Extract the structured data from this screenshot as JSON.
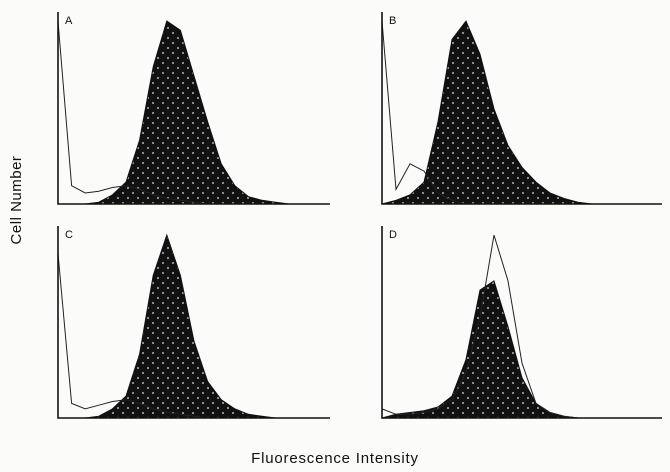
{
  "xlabel": "Fluorescence Intensity",
  "ylabel": "Cell Number",
  "chart_data": [
    {
      "type": "area",
      "panel": "A",
      "x": [
        0,
        0.05,
        0.1,
        0.15,
        0.2,
        0.25,
        0.3,
        0.35,
        0.4,
        0.45,
        0.5,
        0.55,
        0.6,
        0.65,
        0.7,
        0.75,
        0.8,
        0.85,
        0.9,
        0.95,
        1
      ],
      "series": [
        {
          "style": "filled",
          "values": [
            0,
            0,
            0,
            0.01,
            0.05,
            0.12,
            0.35,
            0.75,
            1.0,
            0.95,
            0.7,
            0.45,
            0.22,
            0.1,
            0.04,
            0.02,
            0.01,
            0,
            0,
            0,
            0
          ]
        },
        {
          "style": "outline",
          "values": [
            1.0,
            0.1,
            0.06,
            0.07,
            0.09,
            0.1,
            0.08,
            0.05,
            0.03,
            0.02,
            0.01,
            0,
            0,
            0,
            0,
            0,
            0,
            0,
            0,
            0,
            0
          ]
        }
      ],
      "xlim": [
        0,
        1
      ],
      "ylim": [
        0,
        1.05
      ],
      "grid": false
    },
    {
      "type": "area",
      "panel": "B",
      "x": [
        0,
        0.05,
        0.1,
        0.15,
        0.2,
        0.25,
        0.3,
        0.35,
        0.4,
        0.45,
        0.5,
        0.55,
        0.6,
        0.65,
        0.7,
        0.75,
        0.8,
        0.85,
        0.9,
        0.95,
        1
      ],
      "series": [
        {
          "style": "filled",
          "values": [
            0,
            0.02,
            0.05,
            0.12,
            0.45,
            0.9,
            1.0,
            0.82,
            0.52,
            0.32,
            0.2,
            0.12,
            0.06,
            0.03,
            0.01,
            0,
            0,
            0,
            0,
            0,
            0
          ]
        },
        {
          "style": "outline",
          "values": [
            1.0,
            0.08,
            0.22,
            0.18,
            0.06,
            0.02,
            0,
            0,
            0,
            0,
            0,
            0,
            0,
            0,
            0,
            0,
            0,
            0,
            0,
            0,
            0
          ]
        }
      ],
      "xlim": [
        0,
        1
      ],
      "ylim": [
        0,
        1.05
      ],
      "grid": false
    },
    {
      "type": "area",
      "panel": "C",
      "x": [
        0,
        0.05,
        0.1,
        0.15,
        0.2,
        0.25,
        0.3,
        0.35,
        0.4,
        0.45,
        0.5,
        0.55,
        0.6,
        0.65,
        0.7,
        0.75,
        0.8,
        0.85,
        0.9,
        0.95,
        1
      ],
      "series": [
        {
          "style": "filled",
          "values": [
            0,
            0,
            0,
            0.01,
            0.05,
            0.12,
            0.35,
            0.78,
            1.0,
            0.78,
            0.42,
            0.2,
            0.1,
            0.05,
            0.02,
            0.01,
            0,
            0,
            0,
            0,
            0
          ]
        },
        {
          "style": "outline",
          "values": [
            0.9,
            0.08,
            0.05,
            0.07,
            0.09,
            0.1,
            0.08,
            0.05,
            0.03,
            0.02,
            0.01,
            0,
            0,
            0,
            0,
            0,
            0,
            0,
            0,
            0,
            0
          ]
        }
      ],
      "xlim": [
        0,
        1
      ],
      "ylim": [
        0,
        1.05
      ],
      "grid": false
    },
    {
      "type": "area",
      "panel": "D",
      "x": [
        0,
        0.05,
        0.1,
        0.15,
        0.2,
        0.25,
        0.3,
        0.35,
        0.4,
        0.45,
        0.5,
        0.55,
        0.6,
        0.65,
        0.7,
        0.75,
        0.8,
        0.85,
        0.9,
        0.95,
        1
      ],
      "series": [
        {
          "style": "filled",
          "values": [
            0,
            0.02,
            0.03,
            0.04,
            0.06,
            0.12,
            0.32,
            0.7,
            0.75,
            0.5,
            0.22,
            0.08,
            0.03,
            0.01,
            0,
            0,
            0,
            0,
            0,
            0,
            0
          ]
        },
        {
          "style": "outline",
          "values": [
            0.05,
            0.02,
            0.02,
            0.03,
            0.05,
            0.1,
            0.25,
            0.55,
            1.0,
            0.75,
            0.3,
            0.08,
            0.03,
            0.01,
            0,
            0,
            0,
            0,
            0,
            0,
            0
          ]
        }
      ],
      "xlim": [
        0,
        1
      ],
      "ylim": [
        0,
        1.05
      ],
      "grid": false
    }
  ]
}
